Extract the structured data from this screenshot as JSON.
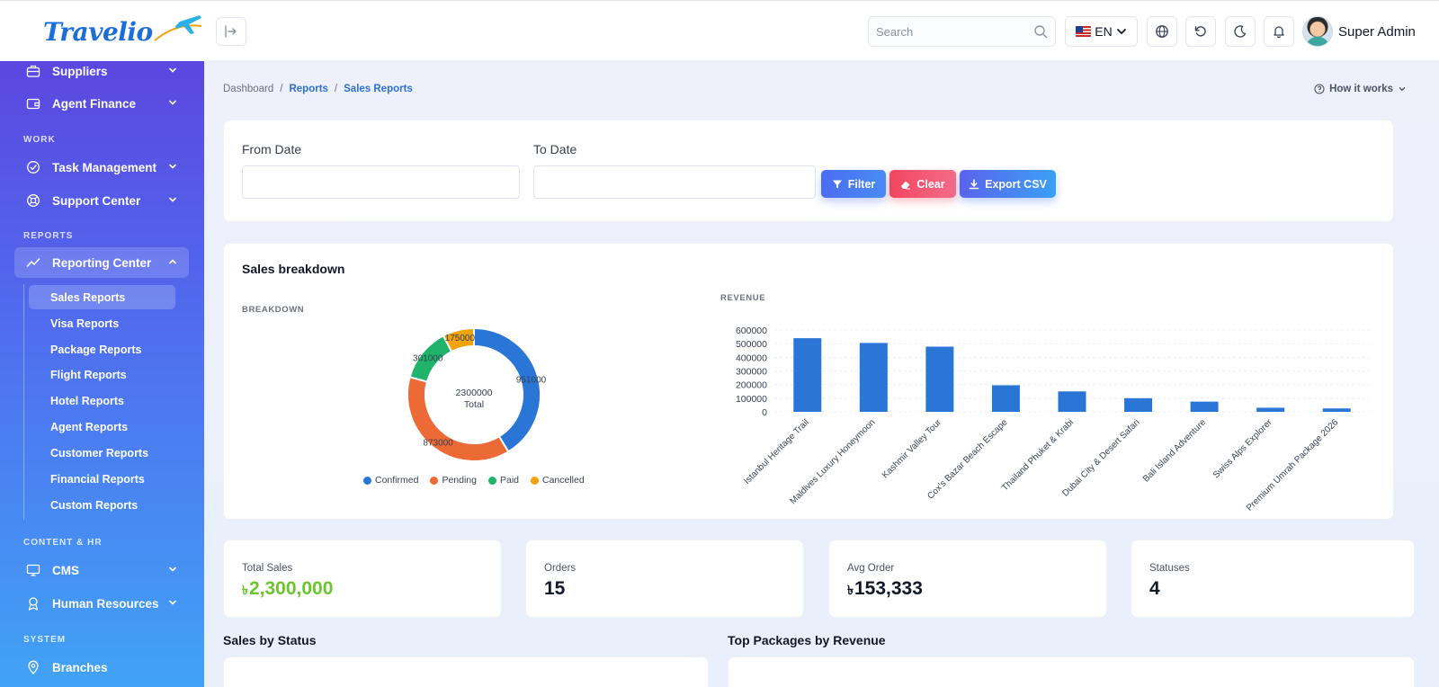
{
  "brand": {
    "name": "Travelio"
  },
  "header": {
    "search_placeholder": "Search",
    "language": "EN",
    "user_name": "Super Admin"
  },
  "sidebar": {
    "top_items": [
      {
        "label": "Suppliers",
        "icon": "briefcase-icon"
      },
      {
        "label": "Agent Finance",
        "icon": "wallet-icon"
      }
    ],
    "sections": {
      "work": "WORK",
      "reports": "REPORTS",
      "content_hr": "CONTENT & HR",
      "system": "SYSTEM"
    },
    "work_items": [
      {
        "label": "Task Management",
        "icon": "check-circle-icon"
      },
      {
        "label": "Support Center",
        "icon": "lifebuoy-icon"
      }
    ],
    "reporting_center": {
      "label": "Reporting Center",
      "icon": "trend-line-icon"
    },
    "report_subitems": [
      "Sales Reports",
      "Visa Reports",
      "Package Reports",
      "Flight Reports",
      "Hotel Reports",
      "Agent Reports",
      "Customer Reports",
      "Financial Reports",
      "Custom Reports"
    ],
    "content_items": [
      {
        "label": "CMS",
        "icon": "monitor-icon"
      },
      {
        "label": "Human Resources",
        "icon": "user-badge-icon"
      }
    ],
    "system_items": [
      {
        "label": "Branches",
        "icon": "map-pin-icon"
      }
    ]
  },
  "breadcrumb": {
    "home": "Dashboard",
    "parent": "Reports",
    "current": "Sales Reports",
    "separator": "/"
  },
  "help": {
    "label": "How it works"
  },
  "filters": {
    "from_label": "From Date",
    "to_label": "To Date",
    "from_value": "",
    "to_value": "",
    "filter_button": "Filter",
    "clear_button": "Clear",
    "export_button": "Export CSV"
  },
  "sales_breakdown": {
    "title": "Sales breakdown",
    "breakdown_label": "BREAKDOWN",
    "revenue_label": "REVENUE",
    "center_value": "2300000",
    "center_label": "Total"
  },
  "chart_data": [
    {
      "type": "pie",
      "variant": "donut",
      "categories": [
        "Confirmed",
        "Pending",
        "Paid",
        "Cancelled"
      ],
      "values": [
        951000,
        873000,
        301000,
        175000
      ],
      "colors": [
        "#2a76d6",
        "#ec6a35",
        "#1fb46a",
        "#f2a20c"
      ],
      "legend": "bottom"
    },
    {
      "type": "bar",
      "categories": [
        "Istanbul Heritage Trail",
        "Maldives Luxury Honeymoon",
        "Kashmir Valley Tour",
        "Cox's Bazar Beach Escape",
        "Thailand Phuket & Krabi",
        "Dubai City & Desert Safari",
        "Bali Island Adventure",
        "Swiss Alps Explorer",
        "Premium Umrah Package 2026"
      ],
      "values": [
        540000,
        505000,
        478000,
        195000,
        150000,
        100000,
        75000,
        30000,
        25000
      ],
      "ylim": [
        0,
        600000
      ],
      "yticks": [
        "0",
        "100000",
        "200000",
        "300000",
        "400000",
        "500000",
        "600000"
      ],
      "color": "#2a76d6",
      "grid": true
    }
  ],
  "stats": [
    {
      "label": "Total Sales",
      "currency": "৳",
      "value": "2,300,000",
      "accent": "#6cc52c"
    },
    {
      "label": "Orders",
      "currency": "",
      "value": "15"
    },
    {
      "label": "Avg Order",
      "currency": "৳",
      "value": "153,333"
    },
    {
      "label": "Statuses",
      "currency": "",
      "value": "4"
    }
  ],
  "sections": {
    "by_status": "Sales by Status",
    "top_packages": "Top Packages by Revenue"
  }
}
